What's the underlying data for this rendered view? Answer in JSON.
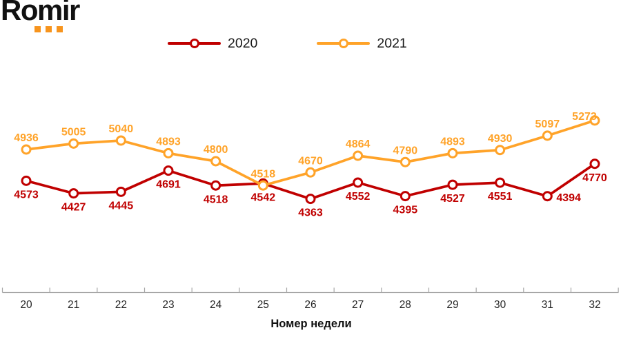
{
  "logo": {
    "text": "Romir",
    "text_color": "#111111",
    "dot_color": "#F7941D"
  },
  "chart_data": {
    "type": "line",
    "title": "",
    "x": [
      20,
      21,
      22,
      23,
      24,
      25,
      26,
      27,
      28,
      29,
      30,
      31,
      32
    ],
    "xlabel": "Номер недели",
    "ylabel": "",
    "ylim": [
      3280,
      5904
    ],
    "grid": false,
    "legend_position": "top",
    "axis_color": "#A6A6A6",
    "tick_label_color": "#262626",
    "xlabel_color": "#111111",
    "series": [
      {
        "name": "2020",
        "color": "#C00000",
        "values": [
          4573,
          4427,
          4445,
          4691,
          4518,
          4542,
          4363,
          4552,
          4395,
          4527,
          4551,
          4394,
          4770
        ],
        "label_positions": [
          "below",
          "below",
          "below",
          "below",
          "below",
          "below",
          "below",
          "below",
          "below",
          "below",
          "below",
          "right",
          "below"
        ]
      },
      {
        "name": "2021",
        "color": "#FFA329",
        "values": [
          4936,
          5005,
          5040,
          4893,
          4800,
          4518,
          4670,
          4864,
          4790,
          4893,
          4930,
          5097,
          5273
        ],
        "label_positions": [
          "above",
          "above",
          "above",
          "above",
          "above",
          "above",
          "above",
          "above",
          "above",
          "above",
          "above",
          "above",
          "above-left"
        ]
      }
    ]
  }
}
